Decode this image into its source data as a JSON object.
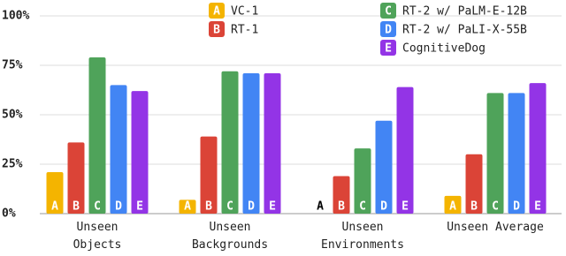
{
  "chart_data": {
    "type": "bar",
    "categories": [
      "Unseen\nObjects",
      "Unseen\nBackgrounds",
      "Unseen\nEnvironments",
      "Unseen Average"
    ],
    "series": [
      {
        "name": "VC-1",
        "letter": "A",
        "color": "#f4b400",
        "values": [
          21,
          7,
          0,
          9
        ]
      },
      {
        "name": "RT-1",
        "letter": "B",
        "color": "#db4437",
        "values": [
          36,
          39,
          19,
          30
        ]
      },
      {
        "name": "RT-2 w/ PaLM-E-12B",
        "letter": "C",
        "color": "#4fa35a",
        "values": [
          79,
          72,
          33,
          61
        ]
      },
      {
        "name": "RT-2 w/ PaLI-X-55B",
        "letter": "D",
        "color": "#4285f4",
        "values": [
          65,
          71,
          47,
          61
        ]
      },
      {
        "name": "CognitiveDog",
        "letter": "E",
        "color": "#9334e6",
        "values": [
          62,
          71,
          64,
          66
        ]
      }
    ],
    "ylim": [
      0,
      100
    ],
    "yticks": [
      {
        "value": 0,
        "label": "0%"
      },
      {
        "value": 25,
        "label": "25%"
      },
      {
        "value": 50,
        "label": "50%"
      },
      {
        "value": 75,
        "label": "75%"
      },
      {
        "value": 100,
        "label": "100%"
      }
    ],
    "grid": true
  }
}
